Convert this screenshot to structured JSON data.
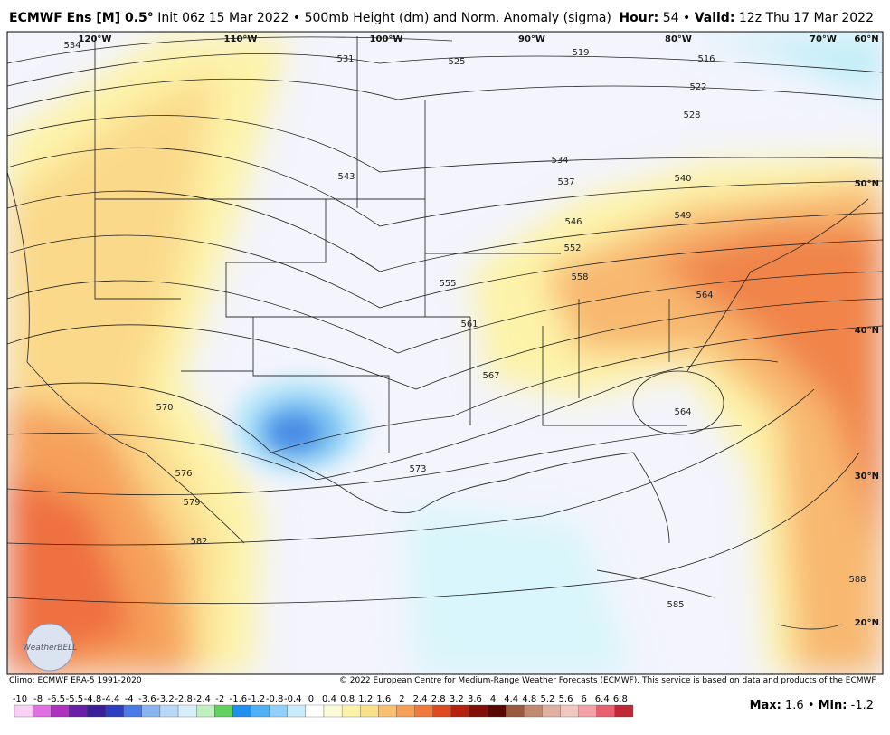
{
  "header": {
    "model": "ECMWF Ens [M] 0.5°",
    "desc": "Init 06z 15 Mar 2022 • 500mb Height (dm) and Norm. Anomaly (sigma)",
    "hour_label": "Hour:",
    "hour": "54",
    "valid_label": "Valid:",
    "valid": "12z Thu 17 Mar 2022"
  },
  "map": {
    "lon_labels": [
      "120°W",
      "110°W",
      "100°W",
      "90°W",
      "80°W",
      "70°W",
      "60°N"
    ],
    "lat_labels": [
      "50°N",
      "40°N",
      "30°N",
      "20°N"
    ],
    "contour_labels": [
      "534",
      "531",
      "525",
      "519",
      "516",
      "522",
      "528",
      "534",
      "537",
      "540",
      "543",
      "546",
      "549",
      "552",
      "555",
      "558",
      "561",
      "564",
      "564",
      "567",
      "570",
      "573",
      "576",
      "579",
      "582",
      "585",
      "588"
    ],
    "logo": "WeatherBELL"
  },
  "footer": {
    "climo": "Climo: ECMWF ERA-5 1991-2020",
    "copyright": "© 2022 European Centre for Medium-Range Weather Forecasts (ECMWF). This service is based on data and products of the ECMWF.",
    "colorbar": [
      "-10",
      "-8",
      "-6.5",
      "-5.5",
      "-4.8",
      "-4.4",
      "-4",
      "-3.6",
      "-3.2",
      "-2.8",
      "-2.4",
      "-2",
      "-1.6",
      "-1.2",
      "-0.8",
      "-0.4",
      "0",
      "0.4",
      "0.8",
      "1.2",
      "1.6",
      "2",
      "2.4",
      "2.8",
      "3.2",
      "3.6",
      "4",
      "4.4",
      "4.8",
      "5.2",
      "5.6",
      "6",
      "6.4",
      "6.8"
    ],
    "max_label": "Max:",
    "max": "1.6",
    "min_label": "Min:",
    "min": "-1.2"
  }
}
